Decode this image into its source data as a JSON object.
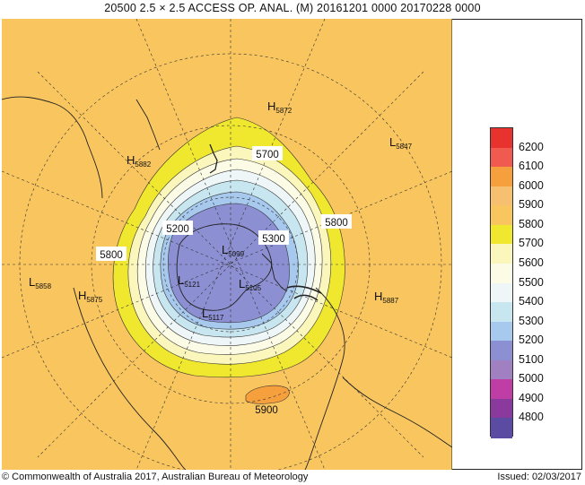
{
  "title": "20500  2.5 × 2.5 ACCESS OP. ANAL.  (M)  20161201 0000 20170228 0000",
  "legend": {
    "levels": [
      {
        "label": "6200",
        "color": "#e8322e"
      },
      {
        "label": "6100",
        "color": "#f05a4f"
      },
      {
        "label": "6000",
        "color": "#f5a03c"
      },
      {
        "label": "5900",
        "color": "#f7c070"
      },
      {
        "label": "5800",
        "color": "#f9c55e"
      },
      {
        "label": "5700",
        "color": "#efe82e"
      },
      {
        "label": "5600",
        "color": "#fbf6bc"
      },
      {
        "label": "5500",
        "color": "#fbfbe6"
      },
      {
        "label": "5400",
        "color": "#eef6f8"
      },
      {
        "label": "5300",
        "color": "#c8e6ef"
      },
      {
        "label": "5200",
        "color": "#a7c9ee"
      },
      {
        "label": "5100",
        "color": "#8c8fd2"
      },
      {
        "label": "5000",
        "color": "#a080c0"
      },
      {
        "label": "4900",
        "color": "#bf3ea6"
      },
      {
        "label": "4800",
        "color": "#8a3a9c"
      },
      {
        "label": "",
        "color": "#5b4ba3"
      }
    ]
  },
  "map": {
    "contour_labels": [
      "5700",
      "5800",
      "5200",
      "5300",
      "5800",
      "5900"
    ],
    "pressure_centres": [
      {
        "letter": "H",
        "value": "5872"
      },
      {
        "letter": "L",
        "value": "5847"
      },
      {
        "letter": "H",
        "value": "5882"
      },
      {
        "letter": "L",
        "value": "5858"
      },
      {
        "letter": "H",
        "value": "5875"
      },
      {
        "letter": "L",
        "value": "5099"
      },
      {
        "letter": "L",
        "value": "5121"
      },
      {
        "letter": "L",
        "value": "5105"
      },
      {
        "letter": "L",
        "value": "5117"
      },
      {
        "letter": "H",
        "value": "5887"
      }
    ]
  },
  "footer": {
    "copyright": "© Commonwealth of Australia 2017, Australian Bureau of Meteorology",
    "issued": "Issued: 02/03/2017"
  }
}
